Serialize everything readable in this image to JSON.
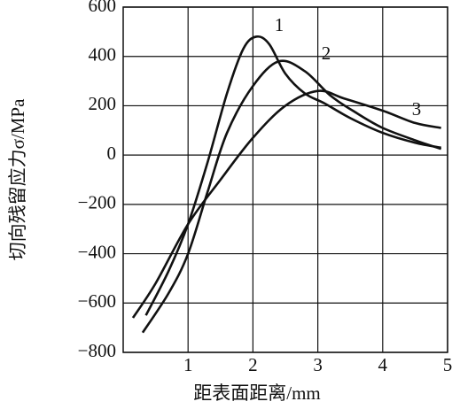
{
  "chart_data": {
    "type": "line",
    "xlabel": "距表面距离/mm",
    "ylabel": "切向残留应力σ/MPa",
    "xlim": [
      0,
      5
    ],
    "ylim": [
      -800,
      600
    ],
    "xticks": [
      1,
      2,
      3,
      4,
      5
    ],
    "yticks": [
      600,
      400,
      200,
      0,
      {
        "value": -200,
        "label": "−200"
      },
      {
        "value": -400,
        "label": "−400"
      },
      {
        "value": -600,
        "label": "−600"
      },
      {
        "value": -800,
        "label": "−800"
      }
    ],
    "grid": true,
    "series": [
      {
        "name": "1",
        "color": "#111111",
        "x": [
          0.35,
          0.7,
          1.0,
          1.3,
          1.6,
          1.85,
          2.05,
          2.25,
          2.5,
          2.8,
          3.1,
          3.5,
          4.0,
          4.5,
          4.9
        ],
        "values": [
          -650,
          -470,
          -280,
          -30,
          250,
          430,
          480,
          450,
          330,
          250,
          210,
          150,
          90,
          50,
          30
        ]
      },
      {
        "name": "2",
        "color": "#111111",
        "x": [
          0.3,
          0.7,
          1.0,
          1.3,
          1.6,
          2.0,
          2.4,
          2.8,
          3.2,
          3.6,
          4.0,
          4.5,
          4.9
        ],
        "values": [
          -720,
          -560,
          -400,
          -150,
          90,
          280,
          380,
          340,
          240,
          170,
          110,
          60,
          25
        ]
      },
      {
        "name": "3",
        "color": "#111111",
        "x": [
          0.15,
          0.5,
          1.0,
          1.5,
          2.0,
          2.5,
          3.0,
          3.4,
          4.0,
          4.5,
          4.9
        ],
        "values": [
          -660,
          -520,
          -280,
          -100,
          70,
          200,
          260,
          230,
          180,
          130,
          110
        ]
      }
    ]
  }
}
